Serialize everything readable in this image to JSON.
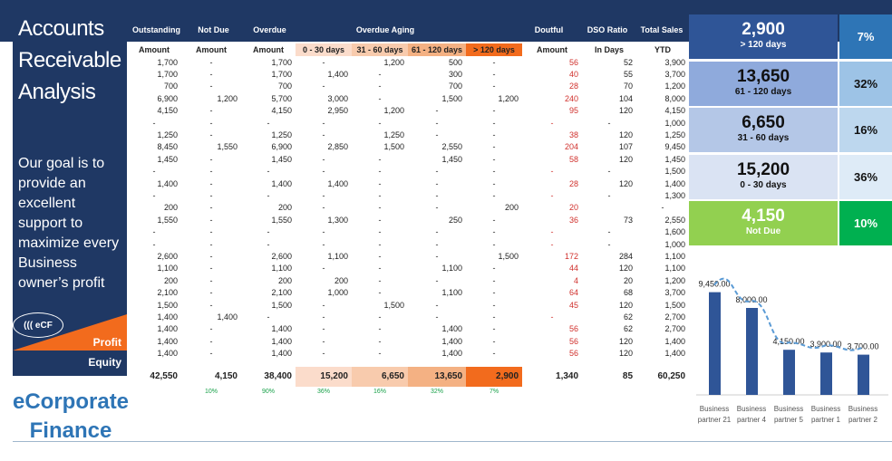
{
  "left": {
    "title": [
      "Accounts",
      "Receivable",
      "Analysis"
    ],
    "goal": [
      "Our goal is to",
      "provide an",
      "excellent",
      "support to",
      "maximize every",
      "Business",
      "owner’s profit"
    ],
    "logo_text": "((( eCF",
    "profit": "Profit",
    "equity": "Equity",
    "brand": [
      "eCorporate",
      "Finance"
    ]
  },
  "headers": {
    "outstanding": "Outstanding",
    "not_due": "Not Due",
    "overdue": "Overdue",
    "aging": "Overdue Aging",
    "doubtful": "Doutful",
    "dso": "DSO Ratio",
    "sales": "Total Sales"
  },
  "subheaders": [
    "Amount",
    "Amount",
    "Amount",
    "0 - 30 days",
    "31 - 60 days",
    "61 - 120 days",
    "> 120 days",
    "Amount",
    "In Days",
    "YTD"
  ],
  "aging_colors": [
    "#fbdccb",
    "#f8cbad",
    "#f4b183",
    "#f26b1d"
  ],
  "rows": [
    [
      "1,700",
      "-",
      "1,700",
      "-",
      "1,200",
      "500",
      "-",
      "56",
      "52",
      "3,900"
    ],
    [
      "1,700",
      "-",
      "1,700",
      "1,400",
      "-",
      "300",
      "-",
      "40",
      "55",
      "3,700"
    ],
    [
      "700",
      "-",
      "700",
      "-",
      "-",
      "700",
      "-",
      "28",
      "70",
      "1,200"
    ],
    [
      "6,900",
      "1,200",
      "5,700",
      "3,000",
      "-",
      "1,500",
      "1,200",
      "240",
      "104",
      "8,000"
    ],
    [
      "4,150",
      "-",
      "4,150",
      "2,950",
      "1,200",
      "-",
      "-",
      "95",
      "120",
      "4,150"
    ],
    [
      "-",
      "-",
      "-",
      "-",
      "-",
      "-",
      "-",
      "-",
      "-",
      "1,000"
    ],
    [
      "1,250",
      "-",
      "1,250",
      "-",
      "1,250",
      "-",
      "-",
      "38",
      "120",
      "1,250"
    ],
    [
      "8,450",
      "1,550",
      "6,900",
      "2,850",
      "1,500",
      "2,550",
      "-",
      "204",
      "107",
      "9,450"
    ],
    [
      "1,450",
      "-",
      "1,450",
      "-",
      "-",
      "1,450",
      "-",
      "58",
      "120",
      "1,450"
    ],
    [
      "-",
      "-",
      "-",
      "-",
      "-",
      "-",
      "-",
      "-",
      "-",
      "1,500"
    ],
    [
      "1,400",
      "-",
      "1,400",
      "1,400",
      "-",
      "-",
      "-",
      "28",
      "120",
      "1,400"
    ],
    [
      "-",
      "-",
      "-",
      "-",
      "-",
      "-",
      "-",
      "-",
      "-",
      "1,300"
    ],
    [
      "200",
      "-",
      "200",
      "-",
      "-",
      "-",
      "200",
      "20",
      "",
      "-"
    ],
    [
      "1,550",
      "-",
      "1,550",
      "1,300",
      "-",
      "250",
      "-",
      "36",
      "73",
      "2,550"
    ],
    [
      "-",
      "-",
      "-",
      "-",
      "-",
      "-",
      "-",
      "-",
      "-",
      "1,600"
    ],
    [
      "-",
      "-",
      "-",
      "-",
      "-",
      "-",
      "-",
      "-",
      "-",
      "1,000"
    ],
    [
      "2,600",
      "-",
      "2,600",
      "1,100",
      "-",
      "-",
      "1,500",
      "172",
      "284",
      "1,100"
    ],
    [
      "1,100",
      "-",
      "1,100",
      "-",
      "-",
      "1,100",
      "-",
      "44",
      "120",
      "1,100"
    ],
    [
      "200",
      "-",
      "200",
      "200",
      "-",
      "-",
      "-",
      "4",
      "20",
      "1,200"
    ],
    [
      "2,100",
      "-",
      "2,100",
      "1,000",
      "-",
      "1,100",
      "-",
      "64",
      "68",
      "3,700"
    ],
    [
      "1,500",
      "-",
      "1,500",
      "-",
      "1,500",
      "-",
      "-",
      "45",
      "120",
      "1,500"
    ],
    [
      "1,400",
      "1,400",
      "-",
      "-",
      "-",
      "-",
      "-",
      "-",
      "62",
      "2,700"
    ],
    [
      "1,400",
      "-",
      "1,400",
      "-",
      "-",
      "1,400",
      "-",
      "56",
      "62",
      "2,700"
    ],
    [
      "1,400",
      "-",
      "1,400",
      "-",
      "-",
      "1,400",
      "-",
      "56",
      "120",
      "1,400"
    ],
    [
      "1,400",
      "-",
      "1,400",
      "-",
      "-",
      "1,400",
      "-",
      "56",
      "120",
      "1,400"
    ]
  ],
  "totals": [
    "42,550",
    "4,150",
    "38,400",
    "15,200",
    "6,650",
    "13,650",
    "2,900",
    "1,340",
    "85",
    "60,250"
  ],
  "total_pcts": [
    "",
    "10%",
    "90%",
    "36%",
    "16%",
    "32%",
    "7%",
    "",
    "",
    ""
  ],
  "cards": [
    {
      "value": "2,900",
      "label": "> 120 days",
      "pct": "7%",
      "bg": "#2f5597",
      "pbg": "#2e75b6",
      "fg": "#fff"
    },
    {
      "value": "13,650",
      "label": "61 - 120 days",
      "pct": "32%",
      "bg": "#8faadc",
      "pbg": "#9dc3e6",
      "fg": "#111"
    },
    {
      "value": "6,650",
      "label": "31 - 60 days",
      "pct": "16%",
      "bg": "#b4c7e7",
      "pbg": "#bdd7ee",
      "fg": "#111"
    },
    {
      "value": "15,200",
      "label": "0 - 30 days",
      "pct": "36%",
      "bg": "#dae3f3",
      "pbg": "#deebf7",
      "fg": "#111"
    },
    {
      "value": "4,150",
      "label": "Not Due",
      "pct": "10%",
      "bg": "#92d050",
      "pbg": "#00b050",
      "fg": "#fff"
    }
  ],
  "chart_data": {
    "type": "bar",
    "categories": [
      "Business partner 21",
      "Business partner 4",
      "Business partner 5",
      "Business partner 1",
      "Business partner 2"
    ],
    "values": [
      9450,
      8000,
      4150,
      3900,
      3700
    ],
    "data_labels": [
      "9,450.00",
      "8,000.00",
      "4,150.00",
      "3,900.00",
      "3,700.00"
    ],
    "bar_color": "#2f5597",
    "trendline": "smoothed dashed",
    "grid": false
  }
}
